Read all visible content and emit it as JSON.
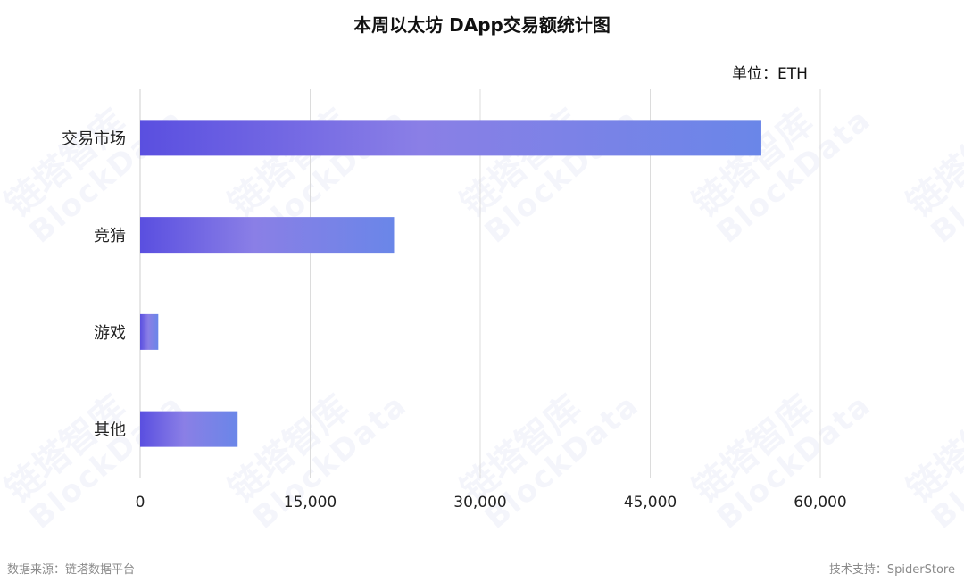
{
  "title": "本周以太坊 DApp交易额统计图",
  "unit_label": "单位：ETH",
  "footer": {
    "source": "数据来源：链塔数据平台",
    "support": "技术支持：SpiderStore"
  },
  "watermark": {
    "name": "链塔智库",
    "sub": "BlockData"
  },
  "colors": {
    "bar_start": "#5a4fe0",
    "bar_mid": "#8a7fe6",
    "bar_end": "#6a86e8",
    "grid": "#dcdcdc",
    "text": "#222222"
  },
  "chart_data": {
    "type": "bar",
    "orientation": "horizontal",
    "categories": [
      "交易市场",
      "竞猜",
      "游戏",
      "其他"
    ],
    "values": [
      54800,
      22400,
      1600,
      8600
    ],
    "xlim": [
      0,
      60000
    ],
    "xticks": [
      0,
      15000,
      30000,
      45000,
      60000
    ],
    "xtick_labels": [
      "0",
      "15,000",
      "30,000",
      "45,000",
      "60,000"
    ],
    "grid": true
  }
}
